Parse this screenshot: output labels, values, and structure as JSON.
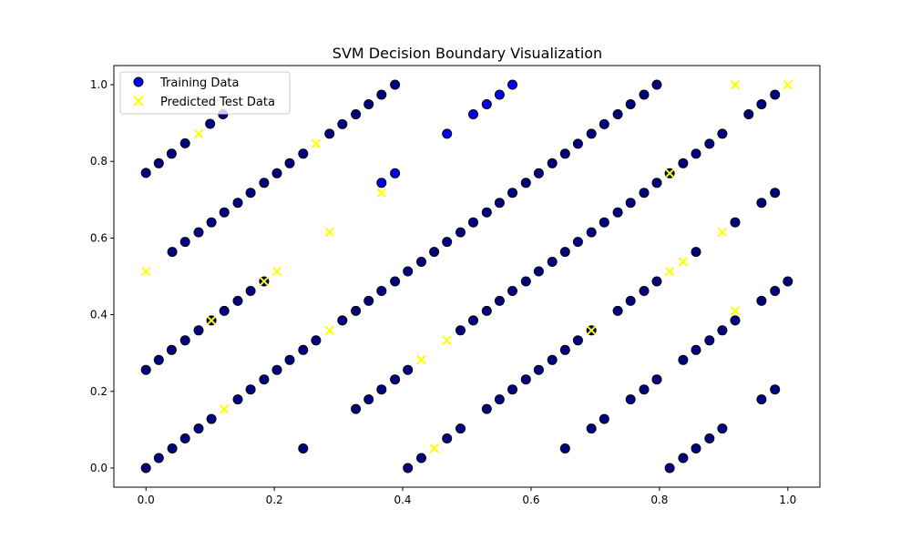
{
  "chart_data": {
    "type": "scatter",
    "title": "SVM Decision Boundary Visualization",
    "xlabel": "",
    "ylabel": "",
    "xlim": [
      -0.05,
      1.05
    ],
    "ylim": [
      -0.05,
      1.05
    ],
    "xticks": [
      0.0,
      0.2,
      0.4,
      0.6,
      0.8,
      1.0
    ],
    "yticks": [
      0.0,
      0.2,
      0.4,
      0.6,
      0.8,
      1.0
    ],
    "xtick_labels": [
      "0.0",
      "0.2",
      "0.4",
      "0.6",
      "0.8",
      "1.0"
    ],
    "ytick_labels": [
      "0.0",
      "0.2",
      "0.4",
      "0.6",
      "0.8",
      "1.0"
    ],
    "grid": false,
    "legend": {
      "placement": "upper-left",
      "entries": [
        {
          "label": "Training Data",
          "marker": "circle",
          "color": "#0000ff"
        },
        {
          "label": "Predicted Test Data",
          "marker": "x",
          "color": "#ffff00"
        }
      ]
    },
    "series": [
      {
        "name": "Training Data",
        "marker": "circle",
        "edge_color": "#000000",
        "points": [
          [
            0.0,
            0.77
          ],
          [
            0.02,
            0.795
          ],
          [
            0.04,
            0.82
          ],
          [
            0.061,
            0.847
          ],
          [
            0.1,
            0.898
          ],
          [
            0.12,
            0.923
          ],
          [
            0.0,
            0.256
          ],
          [
            0.02,
            0.282
          ],
          [
            0.04,
            0.308
          ],
          [
            0.061,
            0.333
          ],
          [
            0.082,
            0.359
          ],
          [
            0.102,
            0.385
          ],
          [
            0.122,
            0.41
          ],
          [
            0.143,
            0.436
          ],
          [
            0.163,
            0.462
          ],
          [
            0.184,
            0.487
          ],
          [
            0.041,
            0.564
          ],
          [
            0.061,
            0.59
          ],
          [
            0.082,
            0.615
          ],
          [
            0.102,
            0.641
          ],
          [
            0.122,
            0.667
          ],
          [
            0.143,
            0.692
          ],
          [
            0.163,
            0.718
          ],
          [
            0.184,
            0.744
          ],
          [
            0.204,
            0.769
          ],
          [
            0.224,
            0.795
          ],
          [
            0.245,
            0.82
          ],
          [
            0.286,
            0.872
          ],
          [
            0.306,
            0.897
          ],
          [
            0.327,
            0.923
          ],
          [
            0.347,
            0.949
          ],
          [
            0.367,
            0.974
          ],
          [
            0.388,
            1.0
          ],
          [
            0.0,
            0.0
          ],
          [
            0.02,
            0.026
          ],
          [
            0.041,
            0.051
          ],
          [
            0.061,
            0.077
          ],
          [
            0.082,
            0.103
          ],
          [
            0.102,
            0.128
          ],
          [
            0.143,
            0.179
          ],
          [
            0.163,
            0.205
          ],
          [
            0.184,
            0.231
          ],
          [
            0.204,
            0.256
          ],
          [
            0.224,
            0.282
          ],
          [
            0.245,
            0.308
          ],
          [
            0.265,
            0.333
          ],
          [
            0.306,
            0.385
          ],
          [
            0.327,
            0.41
          ],
          [
            0.347,
            0.436
          ],
          [
            0.367,
            0.462
          ],
          [
            0.388,
            0.487
          ],
          [
            0.408,
            0.513
          ],
          [
            0.429,
            0.538
          ],
          [
            0.449,
            0.564
          ],
          [
            0.469,
            0.59
          ],
          [
            0.49,
            0.615
          ],
          [
            0.51,
            0.641
          ],
          [
            0.531,
            0.667
          ],
          [
            0.551,
            0.692
          ],
          [
            0.571,
            0.718
          ],
          [
            0.592,
            0.744
          ],
          [
            0.612,
            0.769
          ],
          [
            0.633,
            0.795
          ],
          [
            0.653,
            0.82
          ],
          [
            0.673,
            0.846
          ],
          [
            0.694,
            0.872
          ],
          [
            0.714,
            0.897
          ],
          [
            0.735,
            0.923
          ],
          [
            0.755,
            0.949
          ],
          [
            0.776,
            0.974
          ],
          [
            0.796,
            1.0
          ],
          [
            0.245,
            0.051
          ],
          [
            0.327,
            0.154
          ],
          [
            0.347,
            0.179
          ],
          [
            0.367,
            0.205
          ],
          [
            0.388,
            0.231
          ],
          [
            0.408,
            0.256
          ],
          [
            0.49,
            0.359
          ],
          [
            0.51,
            0.385
          ],
          [
            0.531,
            0.41
          ],
          [
            0.551,
            0.436
          ],
          [
            0.571,
            0.462
          ],
          [
            0.592,
            0.487
          ],
          [
            0.612,
            0.513
          ],
          [
            0.633,
            0.538
          ],
          [
            0.653,
            0.564
          ],
          [
            0.673,
            0.59
          ],
          [
            0.694,
            0.615
          ],
          [
            0.714,
            0.641
          ],
          [
            0.735,
            0.667
          ],
          [
            0.755,
            0.692
          ],
          [
            0.776,
            0.718
          ],
          [
            0.796,
            0.744
          ],
          [
            0.816,
            0.769
          ],
          [
            0.837,
            0.795
          ],
          [
            0.857,
            0.82
          ],
          [
            0.878,
            0.846
          ],
          [
            0.898,
            0.872
          ],
          [
            0.939,
            0.923
          ],
          [
            0.959,
            0.949
          ],
          [
            0.98,
            0.974
          ],
          [
            0.367,
            0.744
          ],
          [
            0.388,
            0.769
          ],
          [
            0.469,
            0.872
          ],
          [
            0.51,
            0.923
          ],
          [
            0.531,
            0.949
          ],
          [
            0.551,
            0.974
          ],
          [
            0.571,
            1.0
          ],
          [
            0.408,
            0.0
          ],
          [
            0.429,
            0.026
          ],
          [
            0.469,
            0.077
          ],
          [
            0.49,
            0.103
          ],
          [
            0.531,
            0.154
          ],
          [
            0.551,
            0.179
          ],
          [
            0.571,
            0.205
          ],
          [
            0.592,
            0.231
          ],
          [
            0.612,
            0.256
          ],
          [
            0.633,
            0.282
          ],
          [
            0.653,
            0.308
          ],
          [
            0.673,
            0.333
          ],
          [
            0.694,
            0.359
          ],
          [
            0.735,
            0.41
          ],
          [
            0.755,
            0.436
          ],
          [
            0.776,
            0.462
          ],
          [
            0.796,
            0.487
          ],
          [
            0.857,
            0.564
          ],
          [
            0.918,
            0.641
          ],
          [
            0.959,
            0.692
          ],
          [
            0.98,
            0.718
          ],
          [
            0.653,
            0.051
          ],
          [
            0.694,
            0.103
          ],
          [
            0.714,
            0.128
          ],
          [
            0.755,
            0.179
          ],
          [
            0.776,
            0.205
          ],
          [
            0.796,
            0.231
          ],
          [
            0.837,
            0.282
          ],
          [
            0.857,
            0.308
          ],
          [
            0.878,
            0.333
          ],
          [
            0.898,
            0.359
          ],
          [
            0.918,
            0.385
          ],
          [
            0.959,
            0.436
          ],
          [
            0.98,
            0.462
          ],
          [
            1.0,
            0.487
          ],
          [
            0.816,
            0.0
          ],
          [
            0.837,
            0.026
          ],
          [
            0.857,
            0.051
          ],
          [
            0.878,
            0.077
          ],
          [
            0.898,
            0.103
          ],
          [
            0.959,
            0.179
          ],
          [
            0.98,
            0.205
          ]
        ]
      },
      {
        "name": "Predicted Test Data",
        "marker": "x",
        "points": [
          [
            0.0,
            0.513
          ],
          [
            0.082,
            0.872
          ],
          [
            0.265,
            0.846
          ],
          [
            0.286,
            0.615
          ],
          [
            0.184,
            0.487
          ],
          [
            0.204,
            0.513
          ],
          [
            0.122,
            0.154
          ],
          [
            0.102,
            0.385
          ],
          [
            0.286,
            0.359
          ],
          [
            0.367,
            0.718
          ],
          [
            0.918,
            1.0
          ],
          [
            1.0,
            1.0
          ],
          [
            0.429,
            0.282
          ],
          [
            0.449,
            0.051
          ],
          [
            0.469,
            0.333
          ],
          [
            0.694,
            0.359
          ],
          [
            0.816,
            0.513
          ],
          [
            0.816,
            0.769
          ],
          [
            0.837,
            0.538
          ],
          [
            0.898,
            0.615
          ],
          [
            0.918,
            0.41
          ]
        ]
      }
    ]
  }
}
